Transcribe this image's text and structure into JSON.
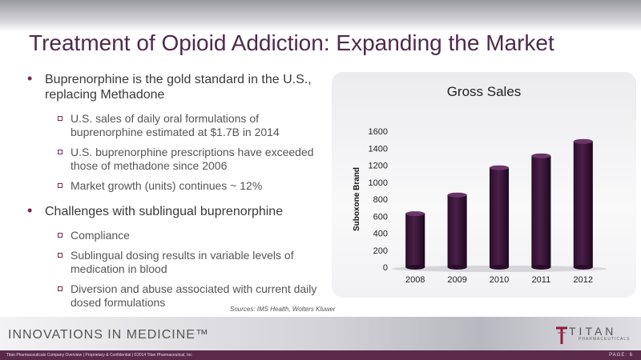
{
  "slide": {
    "title": "Treatment of Opioid Addiction: Expanding the Market",
    "bullets": [
      {
        "text": "Buprenorphine is the gold standard in the U.S., replacing Methadone",
        "sub": [
          "U.S. sales of daily oral formulations of buprenorphine estimated at $1.7B in 2014",
          "U.S. buprenorphine prescriptions have exceeded those of methadone since 2006",
          "Market growth (units) continues ~ 12%"
        ]
      },
      {
        "text": "Challenges with sublingual buprenorphine",
        "sub": [
          "Compliance",
          "Sublingual dosing results in variable levels of medication in blood",
          "Diversion and abuse associated with current daily dosed formulations"
        ]
      }
    ],
    "source": "Sources: IMS Health, Wolters Kluwer"
  },
  "footer": {
    "tagline": "INNOVATIONS IN MEDICINE™",
    "logo_word": "TITAN",
    "logo_sub": "PHARMACEUTICALS",
    "confidential": "Titan Pharmaceuticals Company Overview | Proprietary & Confidential | ©2014 Titan Pharmaceutical, Inc",
    "page": "PAGE: 6"
  },
  "colors": {
    "bar": "#4a1f48",
    "title": "#4e2a4d",
    "accent": "#7a2450"
  },
  "chart_data": {
    "type": "bar",
    "title": "Gross Sales",
    "ylabel": "Suboxone Brand",
    "xlabel": "",
    "categories": [
      "2008",
      "2009",
      "2010",
      "2011",
      "2012"
    ],
    "values": [
      630,
      850,
      1170,
      1310,
      1480
    ],
    "ylim": [
      0,
      1600
    ],
    "yticks": [
      0,
      200,
      400,
      600,
      800,
      1000,
      1200,
      1400,
      1600
    ],
    "ytick_labels": [
      "0",
      "200",
      "400",
      "600",
      "800",
      "1000",
      "1200",
      "1400",
      "1600"
    ],
    "grid": false,
    "legend": false
  }
}
